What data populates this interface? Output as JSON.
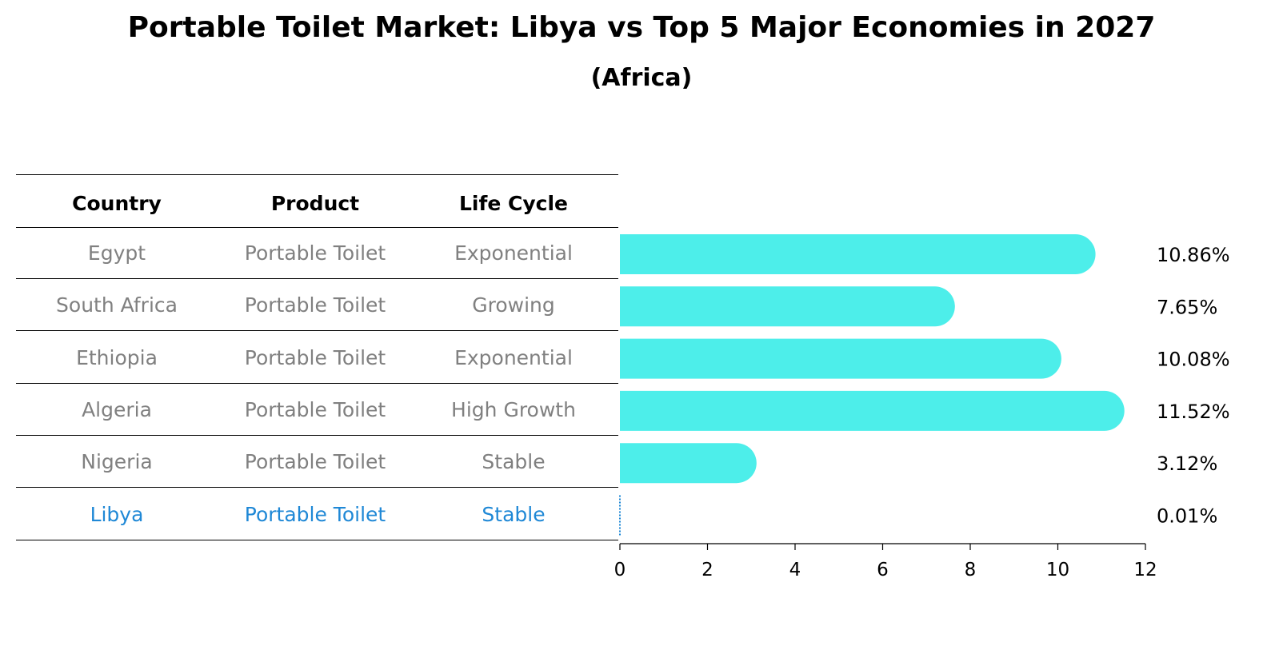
{
  "title": "Portable Toilet Market: Libya vs Top 5 Major Economies in 2027",
  "subtitle": "(Africa)",
  "table": {
    "headers": [
      "Country",
      "Product",
      "Life Cycle"
    ],
    "rows": [
      [
        "Egypt",
        "Portable Toilet",
        "Exponential"
      ],
      [
        "South Africa",
        "Portable Toilet",
        "Growing"
      ],
      [
        "Ethiopia",
        "Portable Toilet",
        "Exponential"
      ],
      [
        "Algeria",
        "Portable Toilet",
        "High Growth"
      ],
      [
        "Nigeria",
        "Portable Toilet",
        "Stable"
      ],
      [
        "Libya",
        "Portable Toilet",
        "Stable"
      ]
    ],
    "highlight_row": 5
  },
  "chart_data": {
    "type": "bar",
    "orientation": "horizontal",
    "categories": [
      "Egypt",
      "South Africa",
      "Ethiopia",
      "Algeria",
      "Nigeria",
      "Libya"
    ],
    "values": [
      10.86,
      7.65,
      10.08,
      11.52,
      3.12,
      0.01
    ],
    "value_labels": [
      "10.86%",
      "7.65%",
      "10.08%",
      "11.52%",
      "3.12%",
      "0.01%"
    ],
    "xlim": [
      0,
      12
    ],
    "xticks": [
      0,
      2,
      4,
      6,
      8,
      10,
      12
    ],
    "grid": false,
    "colors": {
      "bar": "#4deeea",
      "highlight": "#1f88d6"
    }
  }
}
